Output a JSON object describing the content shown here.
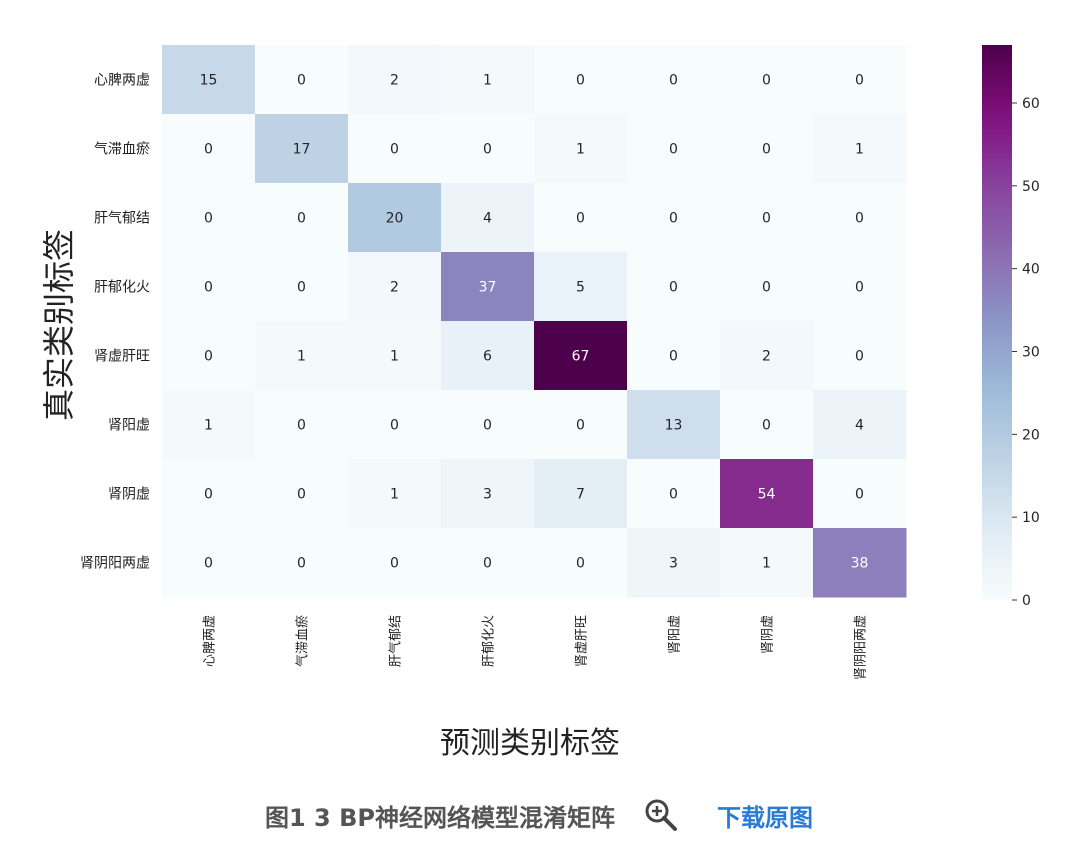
{
  "chart_data": {
    "type": "heatmap",
    "xlabel": "预测类别标签",
    "ylabel": "真实类别标签",
    "row_labels": [
      "心脾两虚",
      "气滞血瘀",
      "肝气郁结",
      "肝郁化火",
      "肾虚肝旺",
      "肾阳虚",
      "肾阴虚",
      "肾阴阳两虚"
    ],
    "col_labels": [
      "心脾两虚",
      "气滞血瘀",
      "肝气郁结",
      "肝郁化火",
      "肾虚肝旺",
      "肾阳虚",
      "肾阴虚",
      "肾阴阳两虚"
    ],
    "values": [
      [
        15,
        0,
        2,
        1,
        0,
        0,
        0,
        0
      ],
      [
        0,
        17,
        0,
        0,
        1,
        0,
        0,
        1
      ],
      [
        0,
        0,
        20,
        4,
        0,
        0,
        0,
        0
      ],
      [
        0,
        0,
        2,
        37,
        5,
        0,
        0,
        0
      ],
      [
        0,
        1,
        1,
        6,
        67,
        0,
        2,
        0
      ],
      [
        1,
        0,
        0,
        0,
        0,
        13,
        0,
        4
      ],
      [
        0,
        0,
        1,
        3,
        7,
        0,
        54,
        0
      ],
      [
        0,
        0,
        0,
        0,
        0,
        3,
        1,
        38
      ]
    ],
    "colormap": "BuPu",
    "vmin": 0,
    "vmax": 67,
    "colorbar_ticks": [
      0,
      10,
      20,
      30,
      40,
      50,
      60
    ],
    "colorbar_tick_labels": [
      "0",
      "10",
      "20",
      "30",
      "40",
      "50",
      "60"
    ]
  },
  "caption": {
    "title": "图1 3 BP神经网络模型混淆矩阵",
    "download_label": "下载原图"
  },
  "icons": {
    "zoom": "zoom-in-icon"
  }
}
